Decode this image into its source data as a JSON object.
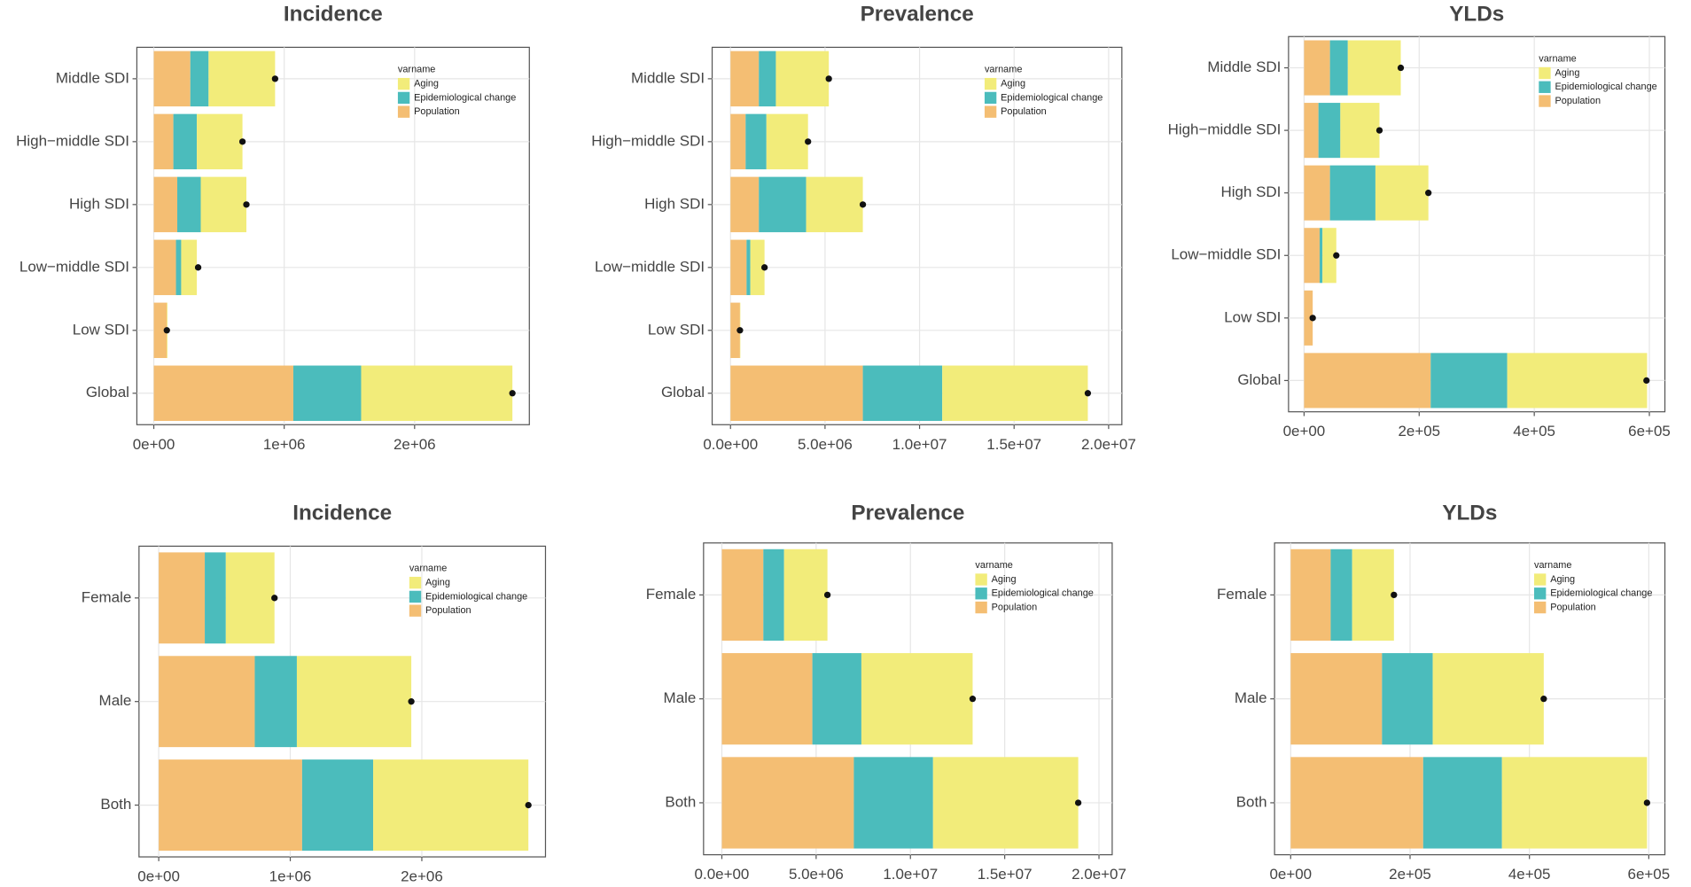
{
  "chart_data": [
    {
      "type": "stacked_barh",
      "title": "Incidence",
      "legend_title": "varname",
      "grid": true,
      "categories": [
        "Middle SDI",
        "High−middle SDI",
        "High SDI",
        "Low−middle SDI",
        "Low SDI",
        "Global"
      ],
      "series": [
        {
          "name": "Aging",
          "color": "#f2ec7a",
          "values": [
            510000,
            350000,
            350000,
            120000,
            5000,
            1160000
          ]
        },
        {
          "name": "Epidemiological change",
          "color": "#4bbcbc",
          "values": [
            140000,
            180000,
            180000,
            40000,
            0,
            520000
          ]
        },
        {
          "name": "Population",
          "color": "#f4be73",
          "values": [
            280000,
            150000,
            180000,
            170000,
            100000,
            1070000
          ]
        }
      ],
      "total": [
        930000,
        680000,
        710000,
        340000,
        100000,
        2750000
      ],
      "xlim": [
        -130000,
        2880000
      ],
      "xticks": [
        {
          "value": 0,
          "label": "0e+00"
        },
        {
          "value": 1000000,
          "label": "1e+06"
        },
        {
          "value": 2000000,
          "label": "2e+06"
        }
      ]
    },
    {
      "type": "stacked_barh",
      "title": "Prevalence",
      "legend_title": "varname",
      "grid": true,
      "categories": [
        "Middle SDI",
        "High−middle SDI",
        "High SDI",
        "Low−middle SDI",
        "Low SDI",
        "Global"
      ],
      "series": [
        {
          "name": "Aging",
          "color": "#f2ec7a",
          "values": [
            2800000,
            2200000,
            3000000,
            750000,
            20000,
            7700000
          ]
        },
        {
          "name": "Epidemiological change",
          "color": "#4bbcbc",
          "values": [
            900000,
            1100000,
            2500000,
            200000,
            0,
            4200000
          ]
        },
        {
          "name": "Population",
          "color": "#f4be73",
          "values": [
            1500000,
            800000,
            1500000,
            850000,
            500000,
            7000000
          ]
        }
      ],
      "total": [
        5200000,
        4100000,
        7000000,
        1800000,
        500000,
        18900000
      ],
      "xlim": [
        -970000,
        20700000
      ],
      "xticks": [
        {
          "value": 0,
          "label": "0.0e+00"
        },
        {
          "value": 5000000,
          "label": "5.0e+06"
        },
        {
          "value": 10000000,
          "label": "1.0e+07"
        },
        {
          "value": 15000000,
          "label": "1.5e+07"
        },
        {
          "value": 20000000,
          "label": "2.0e+07"
        }
      ]
    },
    {
      "type": "stacked_barh",
      "title": "YLDs",
      "legend_title": "varname",
      "grid": true,
      "categories": [
        "Middle SDI",
        "High−middle SDI",
        "High SDI",
        "Low−middle SDI",
        "Low SDI",
        "Global"
      ],
      "series": [
        {
          "name": "Aging",
          "color": "#f2ec7a",
          "values": [
            92000,
            68000,
            92000,
            24000,
            0,
            243000
          ]
        },
        {
          "name": "Epidemiological change",
          "color": "#4bbcbc",
          "values": [
            31000,
            38000,
            79000,
            5000,
            0,
            133000
          ]
        },
        {
          "name": "Population",
          "color": "#f4be73",
          "values": [
            45000,
            25000,
            45000,
            27000,
            15000,
            220000
          ]
        }
      ],
      "total": [
        168000,
        131000,
        216000,
        56000,
        15000,
        595000
      ],
      "xlim": [
        -27000,
        627000
      ],
      "xticks": [
        {
          "value": 0,
          "label": "0e+00"
        },
        {
          "value": 200000,
          "label": "2e+05"
        },
        {
          "value": 400000,
          "label": "4e+05"
        },
        {
          "value": 600000,
          "label": "6e+05"
        }
      ]
    },
    {
      "type": "stacked_barh",
      "title": "Incidence",
      "legend_title": "varname",
      "grid": true,
      "categories": [
        "Female",
        "Male",
        "Both"
      ],
      "series": [
        {
          "name": "Aging",
          "color": "#f2ec7a",
          "values": [
            370000,
            870000,
            1180000
          ]
        },
        {
          "name": "Epidemiological change",
          "color": "#4bbcbc",
          "values": [
            160000,
            320000,
            540000
          ]
        },
        {
          "name": "Population",
          "color": "#f4be73",
          "values": [
            350000,
            730000,
            1090000
          ]
        }
      ],
      "total": [
        880000,
        1920000,
        2810000
      ],
      "xlim": [
        -150000,
        2940000
      ],
      "xticks": [
        {
          "value": 0,
          "label": "0e+00"
        },
        {
          "value": 1000000,
          "label": "1e+06"
        },
        {
          "value": 2000000,
          "label": "2e+06"
        }
      ]
    },
    {
      "type": "stacked_barh",
      "title": "Prevalence",
      "legend_title": "varname",
      "grid": true,
      "categories": [
        "Female",
        "Male",
        "Both"
      ],
      "series": [
        {
          "name": "Aging",
          "color": "#f2ec7a",
          "values": [
            2300000,
            5900000,
            7700000
          ]
        },
        {
          "name": "Epidemiological change",
          "color": "#4bbcbc",
          "values": [
            1100000,
            2600000,
            4200000
          ]
        },
        {
          "name": "Population",
          "color": "#f4be73",
          "values": [
            2200000,
            4800000,
            7000000
          ]
        }
      ],
      "total": [
        5600000,
        13300000,
        18900000
      ],
      "xlim": [
        -970000,
        20700000
      ],
      "xticks": [
        {
          "value": 0,
          "label": "0.0e+00"
        },
        {
          "value": 5000000,
          "label": "5.0e+06"
        },
        {
          "value": 10000000,
          "label": "1.0e+07"
        },
        {
          "value": 15000000,
          "label": "1.5e+07"
        },
        {
          "value": 20000000,
          "label": "2.0e+07"
        }
      ]
    },
    {
      "type": "stacked_barh",
      "title": "YLDs",
      "legend_title": "varname",
      "grid": true,
      "categories": [
        "Female",
        "Male",
        "Both"
      ],
      "series": [
        {
          "name": "Aging",
          "color": "#f2ec7a",
          "values": [
            70000,
            186000,
            243000
          ]
        },
        {
          "name": "Epidemiological change",
          "color": "#4bbcbc",
          "values": [
            36000,
            85000,
            132000
          ]
        },
        {
          "name": "Population",
          "color": "#f4be73",
          "values": [
            67000,
            153000,
            222000
          ]
        }
      ],
      "total": [
        173000,
        424000,
        597000
      ],
      "xlim": [
        -27000,
        627000
      ],
      "xticks": [
        {
          "value": 0,
          "label": "0e+00"
        },
        {
          "value": 200000,
          "label": "2e+05"
        },
        {
          "value": 400000,
          "label": "4e+05"
        },
        {
          "value": 600000,
          "label": "6e+05"
        }
      ]
    }
  ]
}
